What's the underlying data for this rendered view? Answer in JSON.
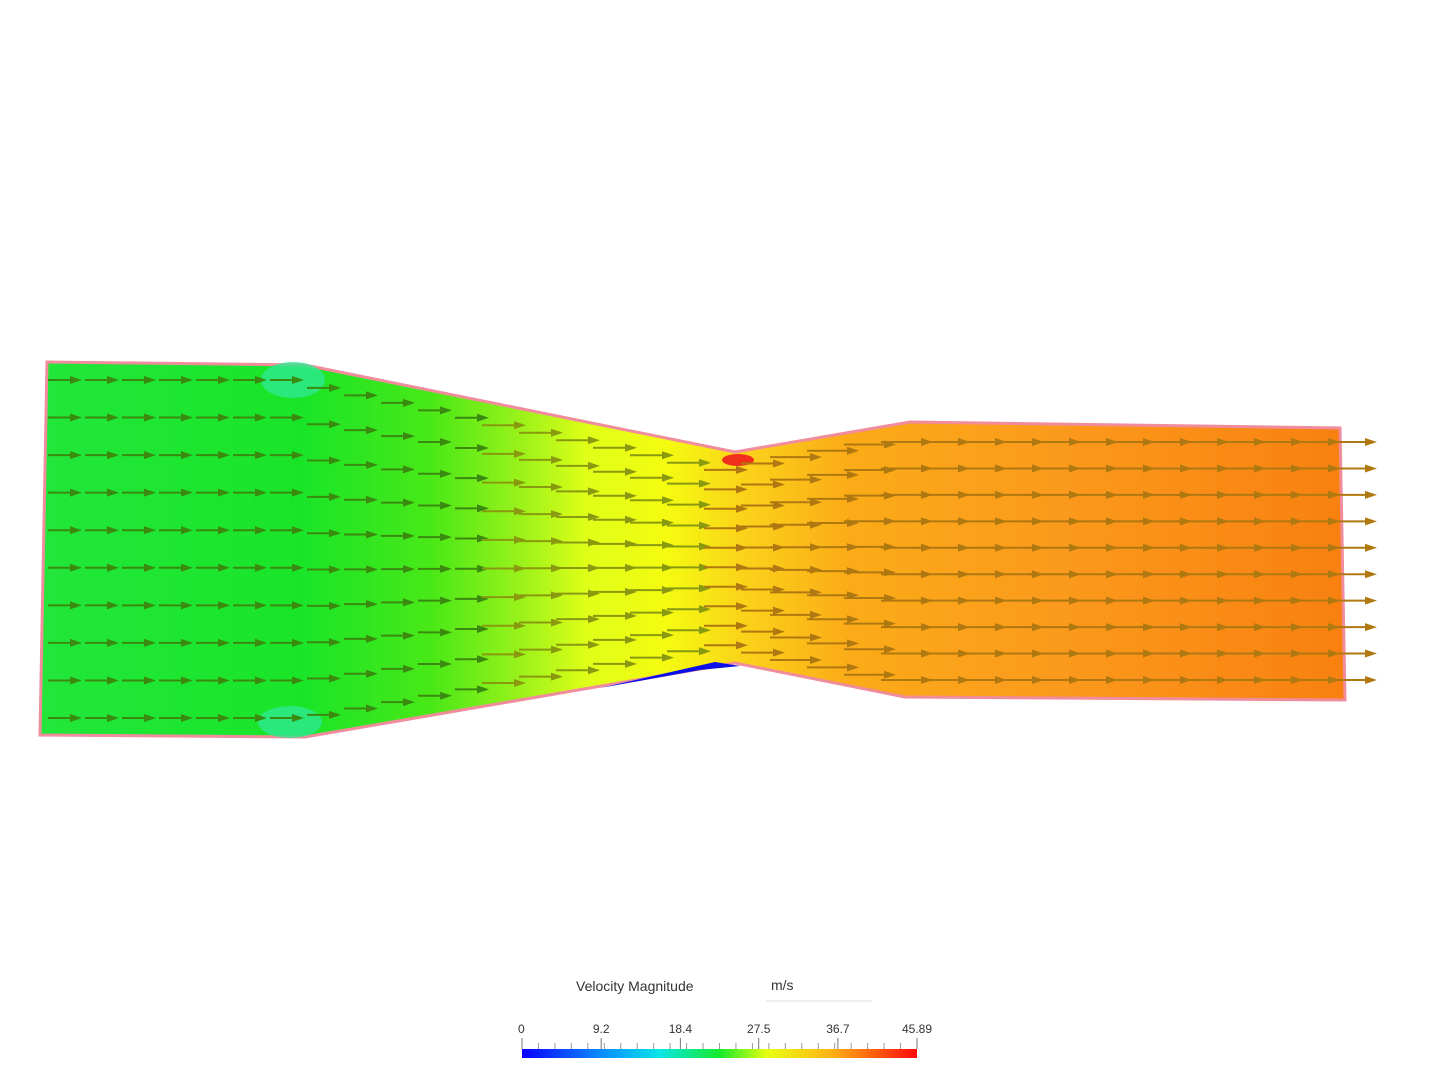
{
  "legend": {
    "title": "Velocity Magnitude",
    "unit": "m/s",
    "ticks": [
      0,
      9.2,
      18.4,
      27.5,
      36.7,
      45.89
    ]
  }
}
